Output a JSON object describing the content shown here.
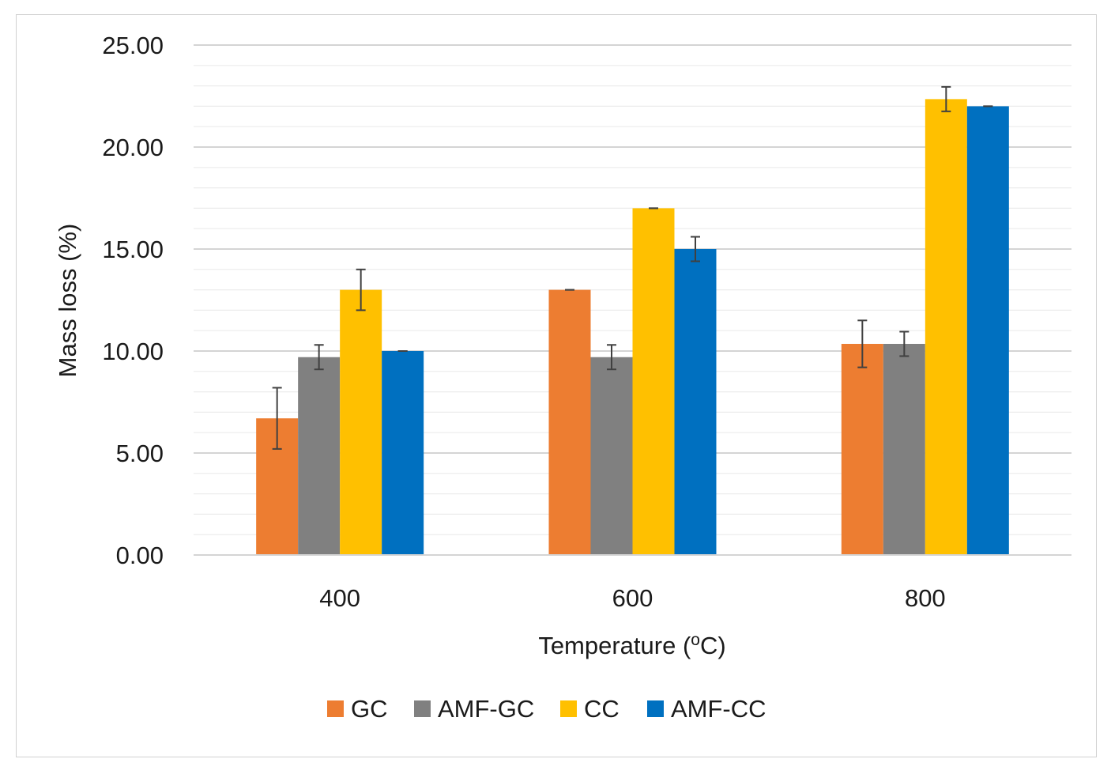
{
  "chart_data": {
    "type": "bar",
    "title": "",
    "xlabel": "Temperature (",
    "xlabel_sup": "o",
    "xlabel_suffix": "C)",
    "ylabel": "Mass loss (%)",
    "ylim": [
      0,
      25
    ],
    "yticks": [
      "0.00",
      "5.00",
      "10.00",
      "15.00",
      "20.00",
      "25.00"
    ],
    "categories": [
      "400",
      "600",
      "800"
    ],
    "series": [
      {
        "name": "GC",
        "color": "#ED7D31",
        "values": [
          6.7,
          13.0,
          10.35
        ],
        "errors": [
          1.5,
          0.0,
          1.15
        ]
      },
      {
        "name": "AMF-GC",
        "color": "#808080",
        "values": [
          9.7,
          9.7,
          10.35
        ],
        "errors": [
          0.6,
          0.6,
          0.6
        ]
      },
      {
        "name": "CC",
        "color": "#FFC000",
        "values": [
          13.0,
          17.0,
          22.35
        ],
        "errors": [
          1.0,
          0.0,
          0.6
        ]
      },
      {
        "name": "AMF-CC",
        "color": "#0070C0",
        "values": [
          10.0,
          15.0,
          22.0
        ],
        "errors": [
          0.0,
          0.6,
          0.0
        ]
      }
    ],
    "grid": true,
    "legend": "bottom"
  }
}
